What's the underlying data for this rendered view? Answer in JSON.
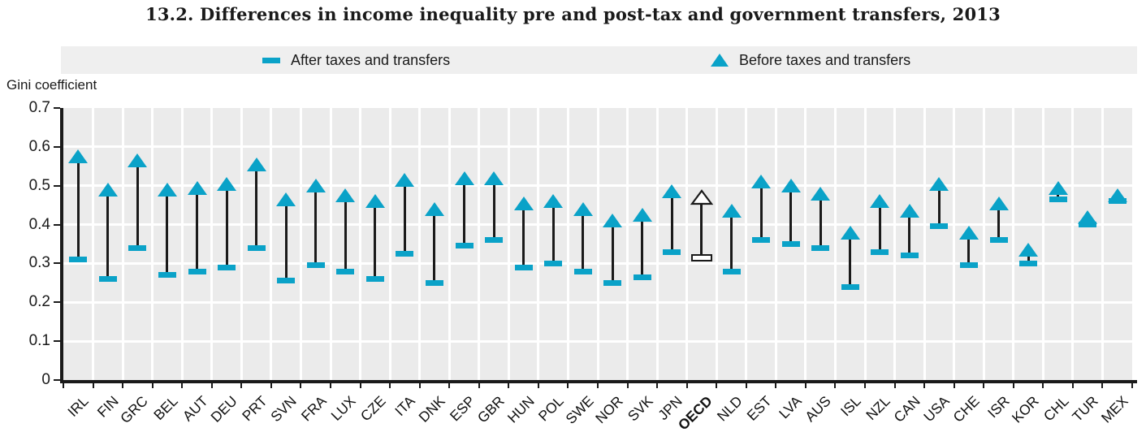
{
  "title": "13.2. Differences in income inequality pre and post-tax and government transfers, 2013",
  "y_axis_title": "Gini coefficient",
  "legend": {
    "after_label": "After taxes and transfers",
    "before_label": "Before taxes and transfers"
  },
  "colors": {
    "marker_teal": "#0aa2c8",
    "plot_background": "#ebebeb",
    "legend_background": "#efefef",
    "gridline": "#ffffff",
    "axis": "#1a1a1a"
  },
  "chart_data": {
    "type": "scatter",
    "subtype": "dumbbell-range",
    "title": "13.2. Differences in income inequality pre and post-tax and government transfers, 2013",
    "xlabel": "",
    "ylabel": "Gini coefficient",
    "ylim": [
      0,
      0.7
    ],
    "yticks": [
      "0",
      "0.1",
      "0.2",
      "0.3",
      "0.4",
      "0.5",
      "0.6",
      "0.7"
    ],
    "grid": true,
    "legend_position": "top",
    "emphasis_category": "OECD",
    "categories": [
      "IRL",
      "FIN",
      "GRC",
      "BEL",
      "AUT",
      "DEU",
      "PRT",
      "SVN",
      "FRA",
      "LUX",
      "CZE",
      "ITA",
      "DNK",
      "ESP",
      "GBR",
      "HUN",
      "POL",
      "SWE",
      "NOR",
      "SVK",
      "JPN",
      "OECD",
      "NLD",
      "EST",
      "LVA",
      "AUS",
      "ISL",
      "NZL",
      "CAN",
      "USA",
      "CHE",
      "ISR",
      "KOR",
      "CHL",
      "TUR",
      "MEX"
    ],
    "series": [
      {
        "name": "After taxes and transfers",
        "marker": "dash",
        "values": [
          0.31,
          0.26,
          0.34,
          0.27,
          0.28,
          0.29,
          0.34,
          0.255,
          0.295,
          0.28,
          0.26,
          0.325,
          0.25,
          0.345,
          0.36,
          0.29,
          0.3,
          0.28,
          0.25,
          0.265,
          0.33,
          0.315,
          0.28,
          0.36,
          0.35,
          0.34,
          0.24,
          0.33,
          0.32,
          0.395,
          0.295,
          0.36,
          0.3,
          0.465,
          0.4,
          0.46
        ]
      },
      {
        "name": "Before taxes and transfers",
        "marker": "triangle",
        "values": [
          0.575,
          0.49,
          0.565,
          0.49,
          0.495,
          0.505,
          0.555,
          0.465,
          0.5,
          0.475,
          0.46,
          0.515,
          0.44,
          0.52,
          0.52,
          0.455,
          0.46,
          0.44,
          0.41,
          0.425,
          0.485,
          0.47,
          0.435,
          0.51,
          0.5,
          0.48,
          0.38,
          0.46,
          0.435,
          0.505,
          0.38,
          0.455,
          0.335,
          0.495,
          0.42,
          0.475
        ]
      }
    ]
  }
}
